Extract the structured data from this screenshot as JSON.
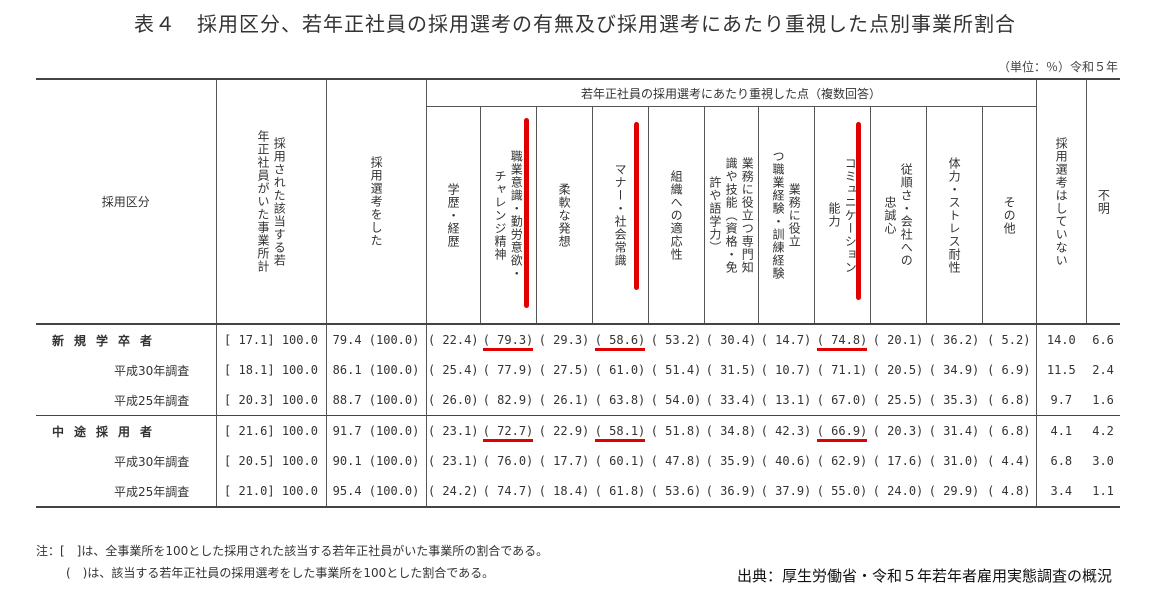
{
  "title": "表４　採用区分、若年正社員の採用選考の有無及び採用選考にあたり重視した点別事業所割合",
  "unit": "（単位：％）令和５年",
  "headers": {
    "category": "採用区分",
    "establishments": "採用された該当する若年正社員がいた事業所計",
    "selection": "採用選考をした",
    "group": "若年正社員の採用選考にあたり重視した点（複数回答）",
    "items": [
      "学歴・経歴",
      "職業意識・勤労意欲・チャレンジ精神",
      "柔軟な発想",
      "マナー・社会常識",
      "組織への適応性",
      "業務に役立つ専門知識や技能（資格・免許や語学力）",
      "業務に役立つ職業経験・訓練経験",
      "コミュニケーション能力",
      "従順さ・会社への忠誠心",
      "体力・ストレス耐性",
      "その他"
    ],
    "no_selection": "採用選考はしていない",
    "unknown": "不明"
  },
  "rows": [
    {
      "label": "新規学卒者",
      "main": true,
      "bracket": "[ 17.1]",
      "total": "100.0",
      "sel": "79.4",
      "sel_p": "(100.0)",
      "vals": [
        "( 22.4)",
        "( 79.3)",
        "( 29.3)",
        "( 58.6)",
        "( 53.2)",
        "( 30.4)",
        "( 14.7)",
        "( 74.8)",
        "( 20.1)",
        "( 36.2)",
        "(  5.2)"
      ],
      "none": "14.0",
      "unk": "6.6"
    },
    {
      "label": "平成30年調査",
      "main": false,
      "bracket": "[ 18.1]",
      "total": "100.0",
      "sel": "86.1",
      "sel_p": "(100.0)",
      "vals": [
        "( 25.4)",
        "( 77.9)",
        "( 27.5)",
        "( 61.0)",
        "( 51.4)",
        "( 31.5)",
        "( 10.7)",
        "( 71.1)",
        "( 20.5)",
        "( 34.9)",
        "(  6.9)"
      ],
      "none": "11.5",
      "unk": "2.4"
    },
    {
      "label": "平成25年調査",
      "main": false,
      "bracket": "[ 20.3]",
      "total": "100.0",
      "sel": "88.7",
      "sel_p": "(100.0)",
      "vals": [
        "( 26.0)",
        "( 82.9)",
        "( 26.1)",
        "( 63.8)",
        "( 54.0)",
        "( 33.4)",
        "( 13.1)",
        "( 67.0)",
        "( 25.5)",
        "( 35.3)",
        "(  6.8)"
      ],
      "none": "9.7",
      "unk": "1.6"
    },
    {
      "label": "中途採用者",
      "main": true,
      "bracket": "[ 21.6]",
      "total": "100.0",
      "sel": "91.7",
      "sel_p": "(100.0)",
      "vals": [
        "( 23.1)",
        "( 72.7)",
        "( 22.9)",
        "( 58.1)",
        "( 51.8)",
        "( 34.8)",
        "( 42.3)",
        "( 66.9)",
        "( 20.3)",
        "( 31.4)",
        "(  6.8)"
      ],
      "none": "4.1",
      "unk": "4.2"
    },
    {
      "label": "平成30年調査",
      "main": false,
      "bracket": "[ 20.5]",
      "total": "100.0",
      "sel": "90.1",
      "sel_p": "(100.0)",
      "vals": [
        "( 23.1)",
        "( 76.0)",
        "( 17.7)",
        "( 60.1)",
        "( 47.8)",
        "( 35.9)",
        "( 40.6)",
        "( 62.9)",
        "( 17.6)",
        "( 31.0)",
        "(  4.4)"
      ],
      "none": "6.8",
      "unk": "3.0"
    },
    {
      "label": "平成25年調査",
      "main": false,
      "bracket": "[ 21.0]",
      "total": "100.0",
      "sel": "95.4",
      "sel_p": "(100.0)",
      "vals": [
        "( 24.2)",
        "( 74.7)",
        "( 18.4)",
        "( 61.8)",
        "( 53.6)",
        "( 36.9)",
        "( 37.9)",
        "( 55.0)",
        "( 24.0)",
        "( 29.9)",
        "(  4.8)"
      ],
      "none": "3.4",
      "unk": "1.1"
    }
  ],
  "notes": [
    "注：[　]は、全事業所を100とした採用された該当する若年正社員がいた事業所の割合である。",
    "(　)は、該当する若年正社員の採用選考をした事業所を100とした割合である。"
  ],
  "source": "出典：厚生労働省・令和５年若年者雇用実態調査の概況",
  "highlight_color": "#e00000"
}
